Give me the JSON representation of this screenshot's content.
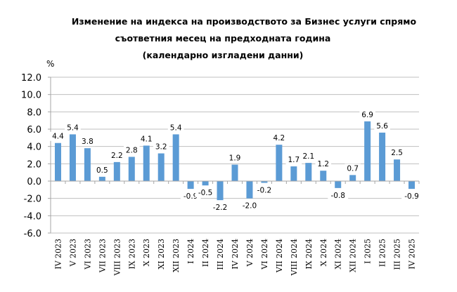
{
  "title_lines": [
    "Изменение на индекса на производството за Бизнес услуги спрямо",
    "съответния месец на предходната година",
    "(календарно изгладени данни)"
  ],
  "unit_label": "%",
  "colors": {
    "bar": "#5B9BD5",
    "grid": "#BFBFBF",
    "axis": "#A6A6A6"
  },
  "chart_data": {
    "type": "bar",
    "title": "Изменение на индекса на производството за Бизнес услуги спрямо съответния месец на предходната година (календарно изгладени данни)",
    "xlabel": "",
    "ylabel": "%",
    "ylim": [
      -6.0,
      12.0
    ],
    "yticks": [
      "12.0",
      "10.0",
      "8.0",
      "6.0",
      "4.0",
      "2.0",
      "0.0",
      "-2.0",
      "-4.0",
      "-6.0"
    ],
    "grid": true,
    "legend": null,
    "categories": [
      "IV 2023",
      "V 2023",
      "VI 2023",
      "VII 2023",
      "VIII 2023",
      "IX 2023",
      "X 2023",
      "XI 2023",
      "XII 2023",
      "I 2024",
      "II 2024",
      "III 2024",
      "IV 2024",
      "V 2024",
      "VI 2024",
      "VII 2024",
      "VIII 2024",
      "IX 2024",
      "X 2024",
      "XI 2024",
      "XII 2024",
      "I 2025",
      "II 2025",
      "III 2025",
      "IV 2025"
    ],
    "values": [
      4.4,
      5.4,
      3.8,
      0.5,
      2.2,
      2.8,
      4.1,
      3.2,
      5.4,
      -0.9,
      -0.5,
      -2.2,
      1.9,
      -2.0,
      -0.2,
      4.2,
      1.7,
      2.1,
      1.2,
      -0.8,
      0.7,
      6.9,
      5.6,
      2.5,
      -0.9
    ]
  }
}
